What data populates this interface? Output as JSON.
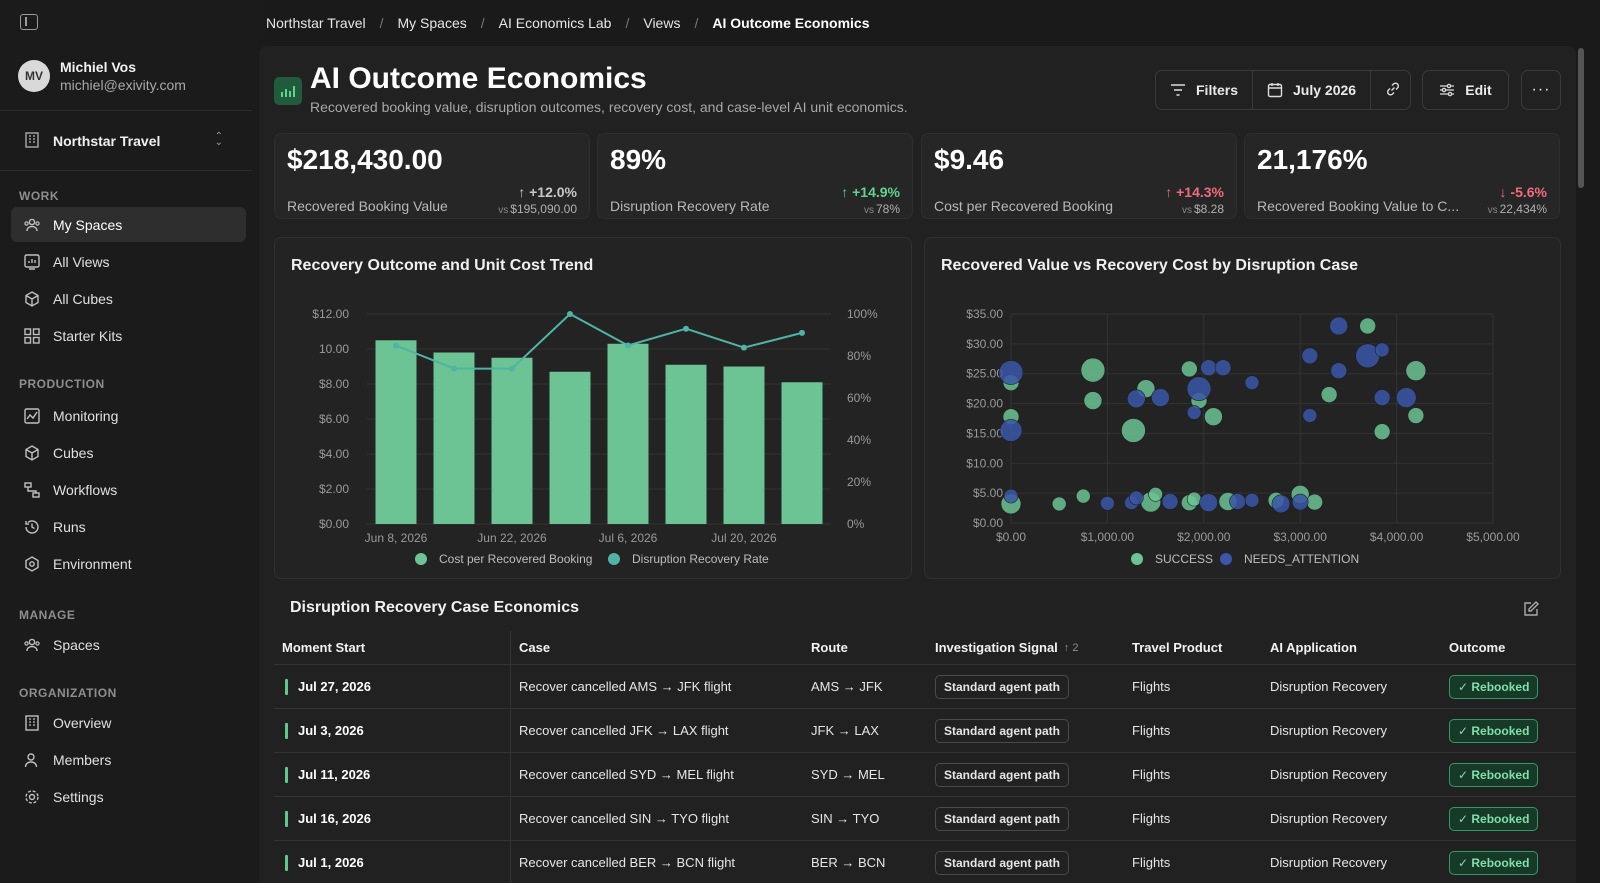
{
  "user": {
    "initials": "MV",
    "name": "Michiel Vos",
    "email": "michiel@exivity.com"
  },
  "org": {
    "name": "Northstar Travel"
  },
  "sidebar": {
    "sections": [
      {
        "label": "WORK"
      },
      {
        "label": "PRODUCTION"
      },
      {
        "label": "MANAGE"
      },
      {
        "label": "ORGANIZATION"
      }
    ],
    "items": [
      {
        "label": "My Spaces",
        "icon": "people-icon"
      },
      {
        "label": "All Views",
        "icon": "views-icon"
      },
      {
        "label": "All Cubes",
        "icon": "cube-icon"
      },
      {
        "label": "Starter Kits",
        "icon": "kits-icon"
      },
      {
        "label": "Monitoring",
        "icon": "monitoring-icon"
      },
      {
        "label": "Cubes",
        "icon": "cube-icon"
      },
      {
        "label": "Workflows",
        "icon": "workflow-icon"
      },
      {
        "label": "Runs",
        "icon": "history-icon"
      },
      {
        "label": "Environment",
        "icon": "environment-icon"
      },
      {
        "label": "Spaces",
        "icon": "people-icon"
      },
      {
        "label": "Overview",
        "icon": "building-icon"
      },
      {
        "label": "Members",
        "icon": "members-icon"
      },
      {
        "label": "Settings",
        "icon": "gear-icon"
      }
    ]
  },
  "breadcrumb": [
    "Northstar Travel",
    "My Spaces",
    "AI Economics Lab",
    "Views",
    "AI Outcome Economics"
  ],
  "page": {
    "title": "AI Outcome Economics",
    "subtitle": "Recovered booking value, disruption outcomes, recovery cost, and case-level AI unit economics."
  },
  "toolbar": {
    "filters": "Filters",
    "period": "July 2026",
    "edit": "Edit"
  },
  "kpis": [
    {
      "value": "$218,430.00",
      "label": "Recovered Booking Value",
      "delta": "+12.0%",
      "vs_prefix": "vs",
      "vs": "$195,090.00",
      "tone": "neutral",
      "dir": "up"
    },
    {
      "value": "89%",
      "label": "Disruption Recovery Rate",
      "delta": "+14.9%",
      "vs_prefix": "vs",
      "vs": "78%",
      "tone": "up-good",
      "dir": "up"
    },
    {
      "value": "$9.46",
      "label": "Cost per Recovered Booking",
      "delta": "+14.3%",
      "vs_prefix": "vs",
      "vs": "$8.28",
      "tone": "up-bad",
      "dir": "up"
    },
    {
      "value": "21,176%",
      "label": "Recovered Booking Value to C...",
      "delta": "-5.6%",
      "vs_prefix": "vs",
      "vs": "22,434%",
      "tone": "up-bad",
      "dir": "down"
    }
  ],
  "colors": {
    "bar": "#6cc393",
    "line": "#4fb3a6",
    "success": "#6cc393",
    "needs_attention": "#3a56a8"
  },
  "chart_data": [
    {
      "type": "bar",
      "title": "Recovery Outcome and Unit Cost Trend",
      "x_tick_labels": [
        "Jun 8, 2026",
        "Jun 22, 2026",
        "Jul 6, 2026",
        "Jul 20, 2026"
      ],
      "ylim": [
        0,
        12
      ],
      "y2lim": [
        0,
        100
      ],
      "y_ticks": [
        "$12.00",
        "10.00",
        "$8.00",
        "$6.00",
        "$4.00",
        "$2.00",
        "$0.00"
      ],
      "y2_ticks": [
        "100%",
        "80%",
        "60%",
        "40%",
        "20%",
        "0%"
      ],
      "series": [
        {
          "name": "Cost per Recovered Booking",
          "type": "bar",
          "values": [
            10.5,
            9.8,
            9.5,
            8.7,
            10.3,
            9.1,
            9.0,
            8.1
          ]
        },
        {
          "name": "Disruption Recovery Rate",
          "type": "line",
          "axis": "right",
          "values": [
            85,
            74,
            74,
            100,
            85,
            93,
            84,
            91
          ]
        }
      ],
      "legend": "bottom"
    },
    {
      "type": "scatter",
      "title": "Recovered Value vs Recovery Cost by Disruption Case",
      "xlim": [
        0,
        5000
      ],
      "ylim": [
        0,
        35
      ],
      "x_ticks": [
        "$0.00",
        "$1,000.00",
        "$2,000.00",
        "$3,000.00",
        "$4,000.00",
        "$5,000.00"
      ],
      "y_ticks": [
        "$35.00",
        "$30.00",
        "$25.00",
        "$20.00",
        "$15.00",
        "$10.00",
        "$5.00",
        "$0.00"
      ],
      "legend": "bottom",
      "series": [
        {
          "name": "SUCCESS",
          "points": [
            [
              0,
              23.5,
              8
            ],
            [
              0,
              17.8,
              8
            ],
            [
              0,
              3.2,
              10
            ],
            [
              850,
              25.6,
              12
            ],
            [
              850,
              20.5,
              9
            ],
            [
              1270,
              15.5,
              12
            ],
            [
              1400,
              22.5,
              9
            ],
            [
              1850,
              25.8,
              8
            ],
            [
              1950,
              20.5,
              8
            ],
            [
              2100,
              17.8,
              9
            ],
            [
              3850,
              15.3,
              8
            ],
            [
              4200,
              18.0,
              8
            ],
            [
              4200,
              25.5,
              10
            ],
            [
              3300,
              21.5,
              8
            ],
            [
              3700,
              33.0,
              8
            ],
            [
              500,
              3.2,
              7
            ],
            [
              750,
              4.5,
              7
            ],
            [
              1450,
              3.5,
              10
            ],
            [
              1500,
              4.8,
              7
            ],
            [
              1850,
              3.4,
              8
            ],
            [
              1900,
              4.0,
              7
            ],
            [
              2250,
              3.6,
              9
            ],
            [
              2750,
              3.8,
              8
            ],
            [
              3000,
              4.8,
              9
            ],
            [
              3150,
              3.5,
              8
            ]
          ]
        },
        {
          "name": "NEEDS_ATTENTION",
          "points": [
            [
              0,
              25.2,
              12
            ],
            [
              0,
              15.5,
              11
            ],
            [
              0,
              4.5,
              7
            ],
            [
              1300,
              20.8,
              9
            ],
            [
              1550,
              21.0,
              9
            ],
            [
              1950,
              22.5,
              12
            ],
            [
              2050,
              26.0,
              8
            ],
            [
              2200,
              26.0,
              8
            ],
            [
              2500,
              23.5,
              7
            ],
            [
              1900,
              18.5,
              7
            ],
            [
              3100,
              28.0,
              8
            ],
            [
              3100,
              18.0,
              7
            ],
            [
              3400,
              33.0,
              9
            ],
            [
              3400,
              25.5,
              8
            ],
            [
              3700,
              28.0,
              12
            ],
            [
              3850,
              29.0,
              7
            ],
            [
              3850,
              21.0,
              8
            ],
            [
              4100,
              21.0,
              10
            ],
            [
              1000,
              3.3,
              7
            ],
            [
              1250,
              3.4,
              7
            ],
            [
              1300,
              4.2,
              7
            ],
            [
              1650,
              3.6,
              8
            ],
            [
              2050,
              3.4,
              9
            ],
            [
              2350,
              3.6,
              8
            ],
            [
              2500,
              3.8,
              7
            ],
            [
              2800,
              3.2,
              9
            ],
            [
              3000,
              3.5,
              8
            ]
          ]
        }
      ]
    }
  ],
  "table": {
    "title": "Disruption Recovery Case Economics",
    "columns": [
      "Moment Start",
      "Case",
      "Route",
      "Investigation Signal",
      "Travel Product",
      "AI Application",
      "Outcome"
    ],
    "sort_indicator": "2",
    "rows": [
      {
        "date": "Jul 27, 2026",
        "case": "Recover cancelled AMS → JFK flight",
        "route": "AMS → JFK",
        "signal": "Standard agent path",
        "product": "Flights",
        "app": "Disruption Recovery",
        "outcome": "✓ Rebooked"
      },
      {
        "date": "Jul 3, 2026",
        "case": "Recover cancelled JFK → LAX flight",
        "route": "JFK → LAX",
        "signal": "Standard agent path",
        "product": "Flights",
        "app": "Disruption Recovery",
        "outcome": "✓ Rebooked"
      },
      {
        "date": "Jul 11, 2026",
        "case": "Recover cancelled SYD → MEL flight",
        "route": "SYD → MEL",
        "signal": "Standard agent path",
        "product": "Flights",
        "app": "Disruption Recovery",
        "outcome": "✓ Rebooked"
      },
      {
        "date": "Jul 16, 2026",
        "case": "Recover cancelled SIN → TYO flight",
        "route": "SIN → TYO",
        "signal": "Standard agent path",
        "product": "Flights",
        "app": "Disruption Recovery",
        "outcome": "✓ Rebooked"
      },
      {
        "date": "Jul 1, 2026",
        "case": "Recover cancelled BER → BCN flight",
        "route": "BER → BCN",
        "signal": "Standard agent path",
        "product": "Flights",
        "app": "Disruption Recovery",
        "outcome": "✓ Rebooked"
      }
    ]
  }
}
